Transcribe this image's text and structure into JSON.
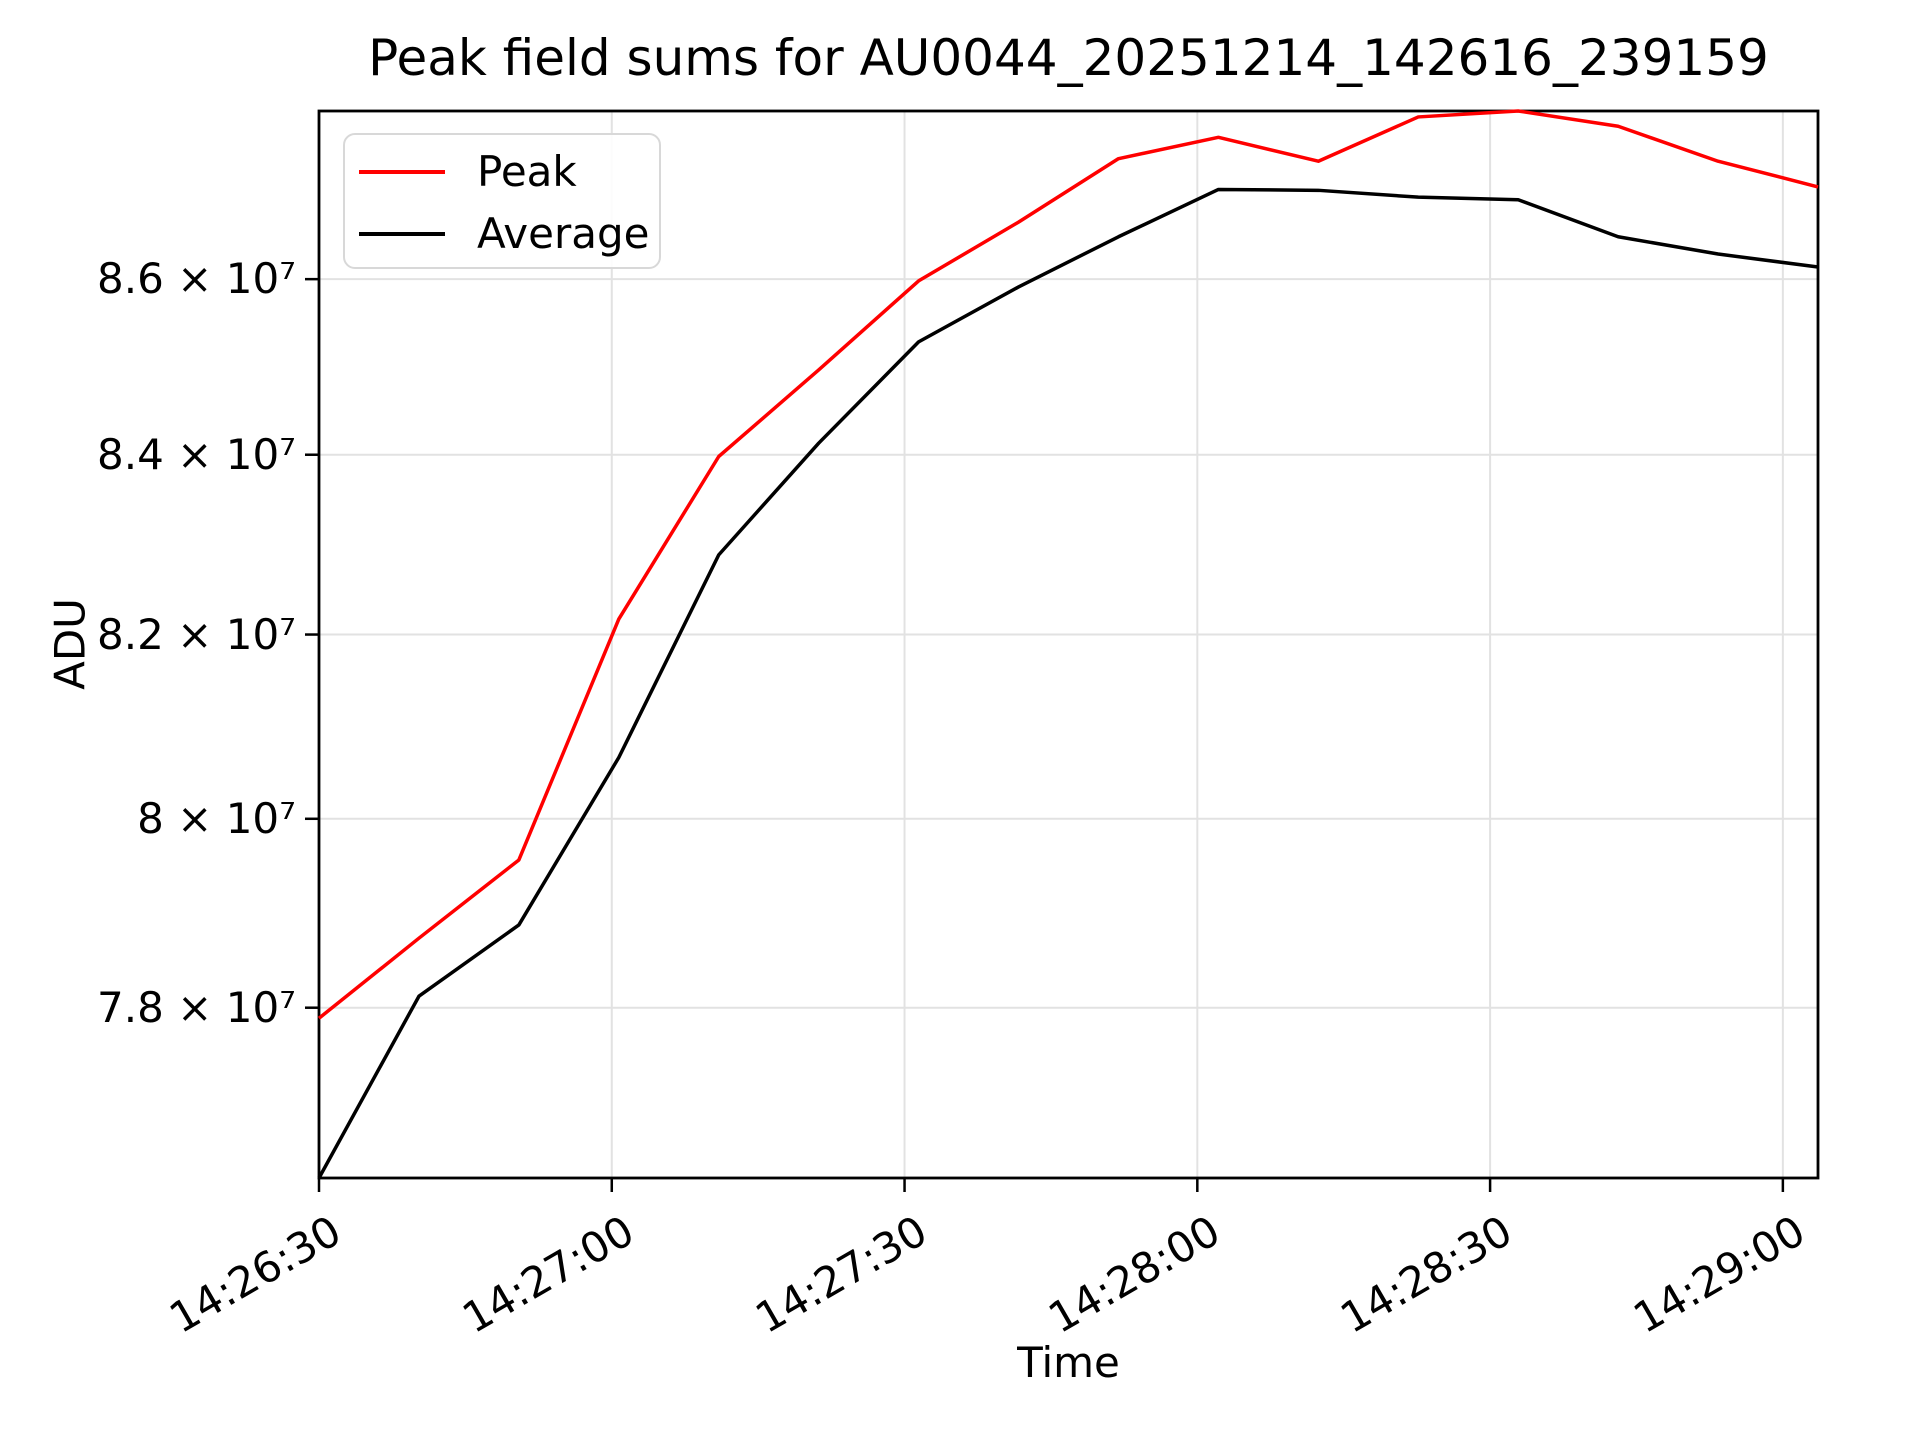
{
  "figure": {
    "title": "Peak field sums for AU0044_20251214_142616_239159",
    "xlabel": "Time",
    "ylabel": "ADU"
  },
  "legend": {
    "entries": [
      {
        "label": "Peak",
        "color": "#ff0000"
      },
      {
        "label": "Average",
        "color": "#000000"
      }
    ]
  },
  "chart_data": {
    "type": "line",
    "title": "Peak field sums for AU0044_20251214_142616_239159",
    "xlabel": "Time",
    "ylabel": "ADU",
    "y_scale": "log",
    "ylim": [
      76240000,
      87960000
    ],
    "grid": true,
    "legend_position": "upper left",
    "x": [
      "14:26:30",
      "14:26:40",
      "14:26:51",
      "14:27:01",
      "14:27:11",
      "14:27:21",
      "14:27:31",
      "14:27:42",
      "14:27:52",
      "14:28:02",
      "14:28:12",
      "14:28:23",
      "14:28:33",
      "14:28:43",
      "14:28:53",
      "14:29:04"
    ],
    "series": [
      {
        "name": "Peak",
        "color": "#ff0000",
        "values": [
          77890000,
          78730000,
          79560000,
          82170000,
          83980000,
          84960000,
          85980000,
          86660000,
          87400000,
          87650000,
          87370000,
          87890000,
          87960000,
          87780000,
          87370000,
          87070000
        ]
      },
      {
        "name": "Average",
        "color": "#000000",
        "values": [
          76240000,
          78120000,
          78870000,
          80660000,
          82880000,
          84130000,
          85280000,
          85910000,
          86490000,
          87040000,
          87030000,
          86950000,
          86920000,
          86490000,
          86290000,
          86140000
        ]
      }
    ],
    "y_ticks": [
      {
        "value": 78000000,
        "label": "7.8 × 10⁷"
      },
      {
        "value": 80000000,
        "label": "8 × 10⁷"
      },
      {
        "value": 82000000,
        "label": "8.2 × 10⁷"
      },
      {
        "value": 84000000,
        "label": "8.4 × 10⁷"
      },
      {
        "value": 86000000,
        "label": "8.6 × 10⁷"
      }
    ],
    "x_ticks": [
      {
        "seconds": 0,
        "label": "14:26:30"
      },
      {
        "seconds": 30,
        "label": "14:27:00"
      },
      {
        "seconds": 60,
        "label": "14:27:30"
      },
      {
        "seconds": 90,
        "label": "14:28:00"
      },
      {
        "seconds": 120,
        "label": "14:28:30"
      },
      {
        "seconds": 150,
        "label": "14:29:00"
      }
    ],
    "x_total_seconds": 153.6
  }
}
